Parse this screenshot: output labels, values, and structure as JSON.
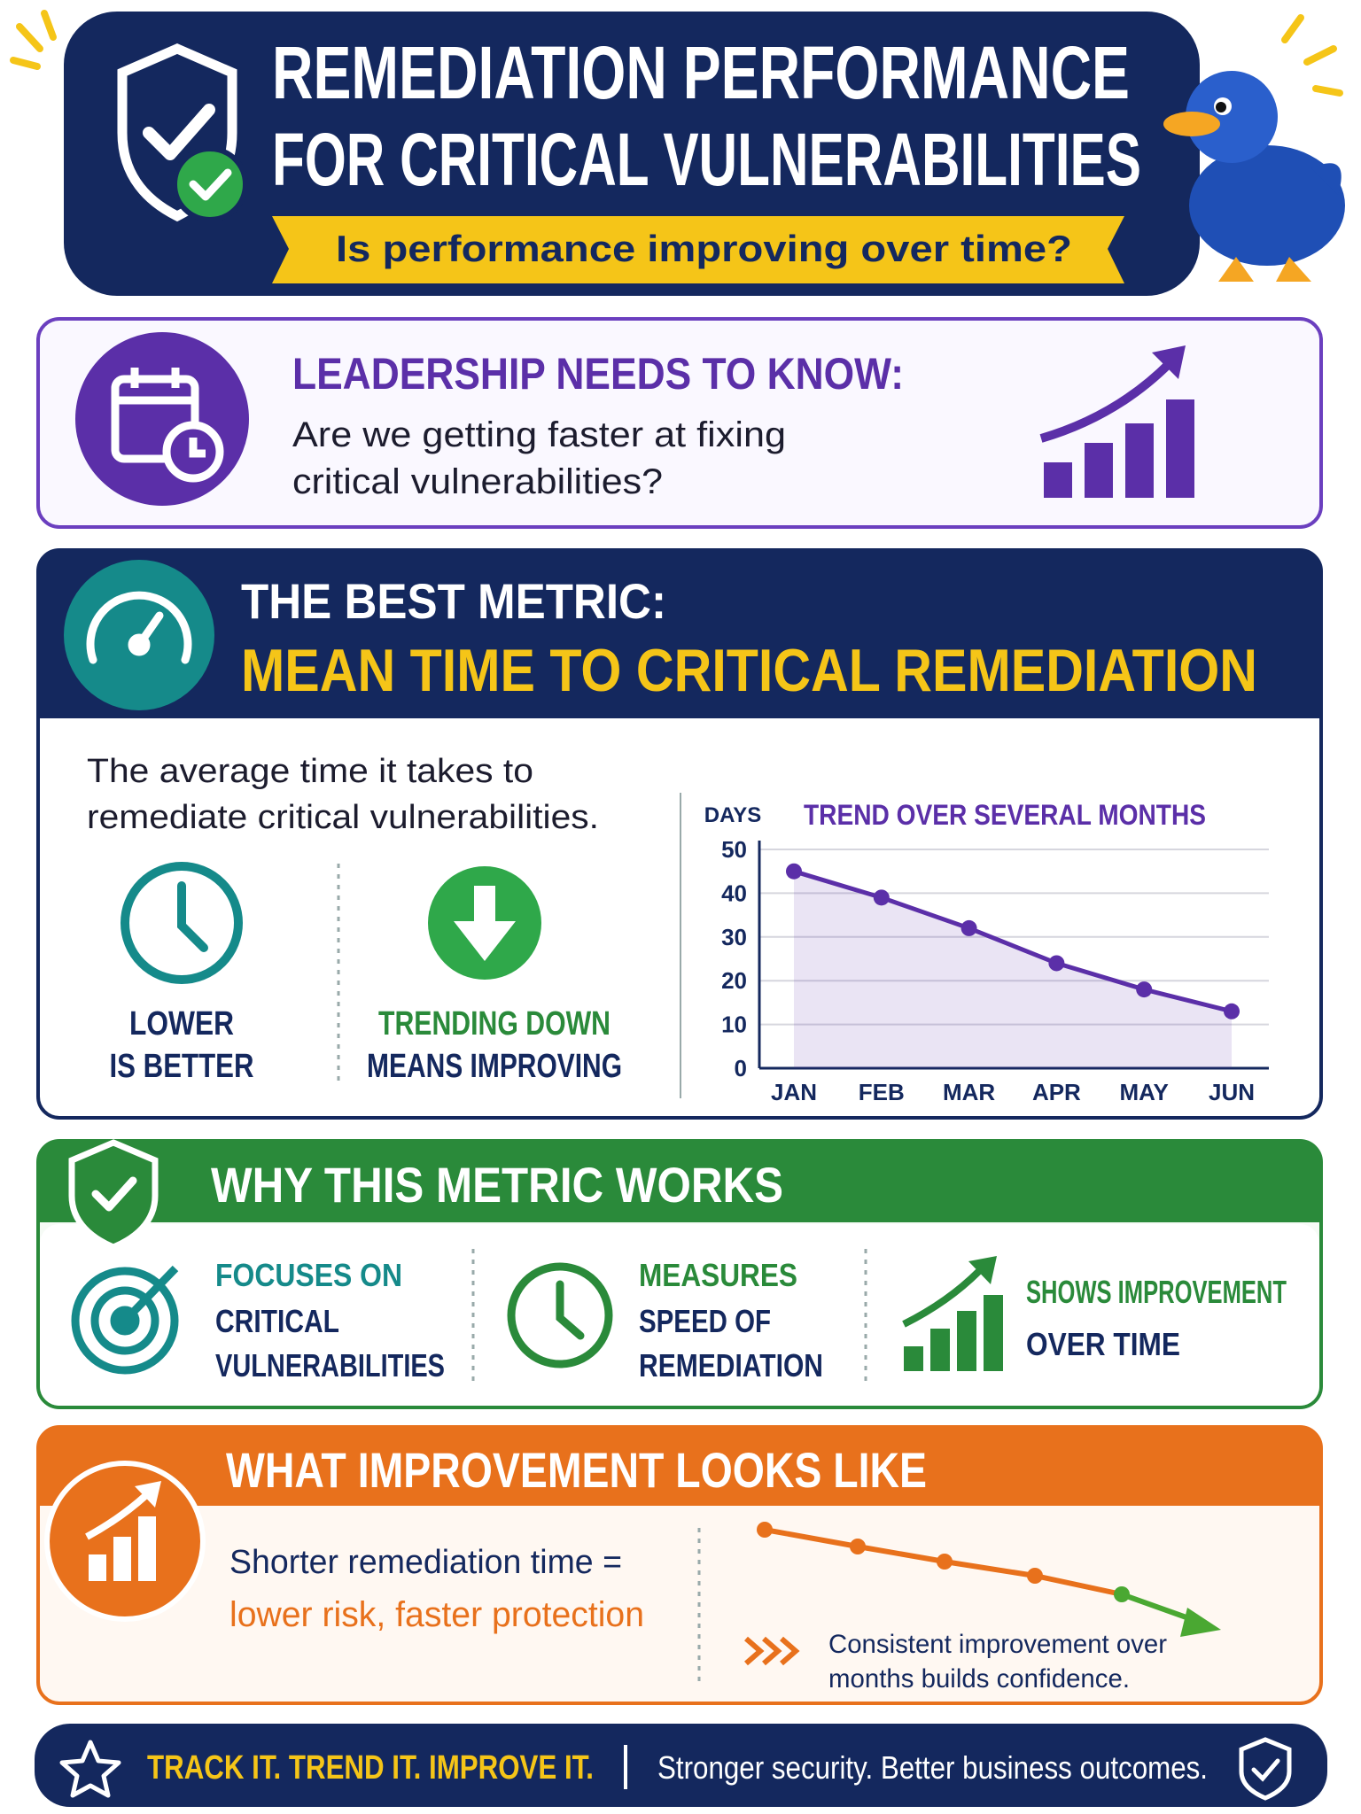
{
  "header": {
    "title_line1": "REMEDIATION PERFORMANCE",
    "title_line2": "FOR CRITICAL VULNERABILITIES",
    "subtitle": "Is performance improving over time?"
  },
  "leadership": {
    "title": "LEADERSHIP NEEDS TO KNOW:",
    "text_lines": [
      "Are we getting faster at fixing",
      "critical vulnerabilities?"
    ]
  },
  "metric": {
    "kicker": "THE BEST METRIC:",
    "title": "MEAN TIME TO CRITICAL REMEDIATION",
    "description_lines": [
      "The average time it takes to",
      "remediate critical vulnerabilities."
    ],
    "points": [
      {
        "lines": [
          "LOWER",
          "IS BETTER"
        ]
      },
      {
        "lines": [
          "TRENDING DOWN",
          "MEANS IMPROVING"
        ]
      }
    ],
    "chart": {
      "type": "line",
      "title": "TREND OVER SEVERAL MONTHS",
      "y_label": "DAYS",
      "categories": [
        "JAN",
        "FEB",
        "MAR",
        "APR",
        "MAY",
        "JUN"
      ],
      "values": [
        45,
        39,
        32,
        24,
        18,
        13
      ],
      "color": "#5b2fa8",
      "ylim": [
        0,
        50
      ],
      "yticks": [
        0,
        10,
        20,
        30,
        40,
        50
      ],
      "grid": true
    }
  },
  "why": {
    "title": "WHY THIS METRIC WORKS",
    "items": [
      {
        "lines": [
          "FOCUSES ON",
          "CRITICAL",
          "VULNERABILITIES"
        ]
      },
      {
        "lines": [
          "MEASURES",
          "SPEED OF",
          "REMEDIATION"
        ]
      },
      {
        "lines": [
          "SHOWS IMPROVEMENT",
          "OVER TIME"
        ]
      }
    ]
  },
  "improvement": {
    "title": "WHAT IMPROVEMENT LOOKS LIKE",
    "text_lines": [
      "Shorter remediation time =",
      "lower risk, faster protection"
    ],
    "caption_lines": [
      "Consistent improvement over",
      "months builds confidence."
    ]
  },
  "footer": {
    "slogan": "TRACK IT. TREND IT. IMPROVE IT.",
    "tagline": "Stronger security. Better business outcomes."
  }
}
